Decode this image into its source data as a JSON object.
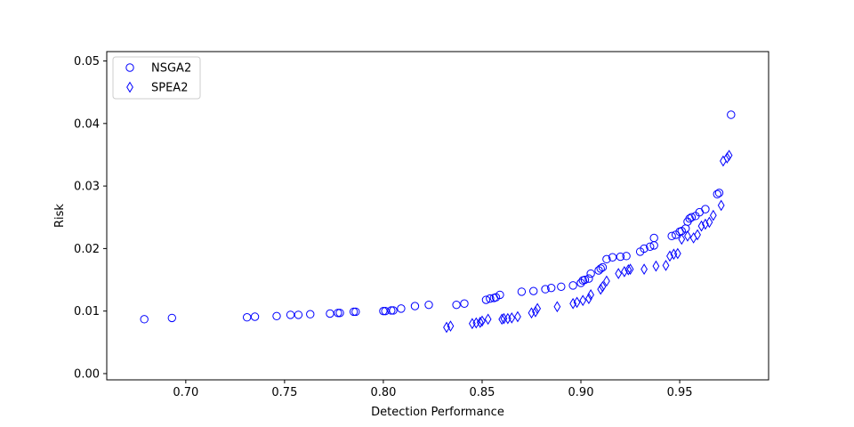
{
  "chart_data": {
    "type": "scatter",
    "title": "",
    "xlabel": "Detection Performance",
    "ylabel": "Risk",
    "xlim": [
      0.66,
      0.995
    ],
    "ylim": [
      -0.001,
      0.0515
    ],
    "xticks": [
      0.7,
      0.75,
      0.8,
      0.85,
      0.9,
      0.95
    ],
    "xtick_labels": [
      "0.70",
      "0.75",
      "0.80",
      "0.85",
      "0.90",
      "0.95"
    ],
    "yticks": [
      0.0,
      0.01,
      0.02,
      0.03,
      0.04,
      0.05
    ],
    "ytick_labels": [
      "0.00",
      "0.01",
      "0.02",
      "0.03",
      "0.04",
      "0.05"
    ],
    "grid": false,
    "legend_position": "top-left",
    "color": "#0000ff",
    "series": [
      {
        "name": "NSGA2",
        "marker": "circle",
        "points": [
          [
            0.679,
            0.0087
          ],
          [
            0.693,
            0.0089
          ],
          [
            0.731,
            0.009
          ],
          [
            0.735,
            0.0091
          ],
          [
            0.746,
            0.0092
          ],
          [
            0.753,
            0.0094
          ],
          [
            0.757,
            0.0094
          ],
          [
            0.763,
            0.0095
          ],
          [
            0.773,
            0.0096
          ],
          [
            0.777,
            0.0097
          ],
          [
            0.778,
            0.0097
          ],
          [
            0.785,
            0.0099
          ],
          [
            0.786,
            0.0099
          ],
          [
            0.8,
            0.01
          ],
          [
            0.801,
            0.01
          ],
          [
            0.804,
            0.0101
          ],
          [
            0.805,
            0.0101
          ],
          [
            0.809,
            0.0104
          ],
          [
            0.816,
            0.0108
          ],
          [
            0.823,
            0.011
          ],
          [
            0.837,
            0.011
          ],
          [
            0.841,
            0.0112
          ],
          [
            0.852,
            0.0118
          ],
          [
            0.854,
            0.012
          ],
          [
            0.856,
            0.0121
          ],
          [
            0.857,
            0.0122
          ],
          [
            0.859,
            0.0126
          ],
          [
            0.87,
            0.0131
          ],
          [
            0.876,
            0.0132
          ],
          [
            0.882,
            0.0135
          ],
          [
            0.885,
            0.0137
          ],
          [
            0.89,
            0.0139
          ],
          [
            0.896,
            0.0141
          ],
          [
            0.9,
            0.0145
          ],
          [
            0.901,
            0.0149
          ],
          [
            0.902,
            0.015
          ],
          [
            0.904,
            0.0152
          ],
          [
            0.905,
            0.016
          ],
          [
            0.909,
            0.0165
          ],
          [
            0.91,
            0.0168
          ],
          [
            0.911,
            0.017
          ],
          [
            0.913,
            0.0183
          ],
          [
            0.916,
            0.0186
          ],
          [
            0.92,
            0.0187
          ],
          [
            0.923,
            0.0188
          ],
          [
            0.93,
            0.0195
          ],
          [
            0.932,
            0.02
          ],
          [
            0.935,
            0.0203
          ],
          [
            0.937,
            0.0205
          ],
          [
            0.937,
            0.0217
          ],
          [
            0.946,
            0.022
          ],
          [
            0.948,
            0.0222
          ],
          [
            0.95,
            0.0227
          ],
          [
            0.951,
            0.0228
          ],
          [
            0.953,
            0.0232
          ],
          [
            0.954,
            0.0243
          ],
          [
            0.955,
            0.0248
          ],
          [
            0.956,
            0.025
          ],
          [
            0.958,
            0.0252
          ],
          [
            0.96,
            0.0258
          ],
          [
            0.963,
            0.0263
          ],
          [
            0.969,
            0.0287
          ],
          [
            0.97,
            0.0289
          ],
          [
            0.976,
            0.0414
          ]
        ]
      },
      {
        "name": "SPEA2",
        "marker": "thin_diamond",
        "points": [
          [
            0.832,
            0.0074
          ],
          [
            0.834,
            0.0076
          ],
          [
            0.845,
            0.008
          ],
          [
            0.847,
            0.0081
          ],
          [
            0.849,
            0.0082
          ],
          [
            0.85,
            0.0084
          ],
          [
            0.853,
            0.0087
          ],
          [
            0.86,
            0.0087
          ],
          [
            0.861,
            0.0088
          ],
          [
            0.863,
            0.0088
          ],
          [
            0.865,
            0.0089
          ],
          [
            0.868,
            0.0091
          ],
          [
            0.875,
            0.0097
          ],
          [
            0.877,
            0.0099
          ],
          [
            0.878,
            0.0104
          ],
          [
            0.888,
            0.0107
          ],
          [
            0.896,
            0.0112
          ],
          [
            0.898,
            0.0114
          ],
          [
            0.901,
            0.0117
          ],
          [
            0.904,
            0.012
          ],
          [
            0.905,
            0.0126
          ],
          [
            0.91,
            0.0135
          ],
          [
            0.911,
            0.0139
          ],
          [
            0.913,
            0.0148
          ],
          [
            0.919,
            0.016
          ],
          [
            0.922,
            0.0163
          ],
          [
            0.924,
            0.0166
          ],
          [
            0.925,
            0.0167
          ],
          [
            0.932,
            0.0167
          ],
          [
            0.938,
            0.0172
          ],
          [
            0.943,
            0.0173
          ],
          [
            0.945,
            0.0188
          ],
          [
            0.947,
            0.0191
          ],
          [
            0.949,
            0.0192
          ],
          [
            0.951,
            0.0215
          ],
          [
            0.954,
            0.022
          ],
          [
            0.957,
            0.0217
          ],
          [
            0.959,
            0.0222
          ],
          [
            0.961,
            0.0236
          ],
          [
            0.963,
            0.0239
          ],
          [
            0.965,
            0.0242
          ],
          [
            0.967,
            0.0253
          ],
          [
            0.971,
            0.0269
          ],
          [
            0.972,
            0.034
          ],
          [
            0.974,
            0.0345
          ],
          [
            0.975,
            0.0349
          ]
        ]
      }
    ]
  }
}
